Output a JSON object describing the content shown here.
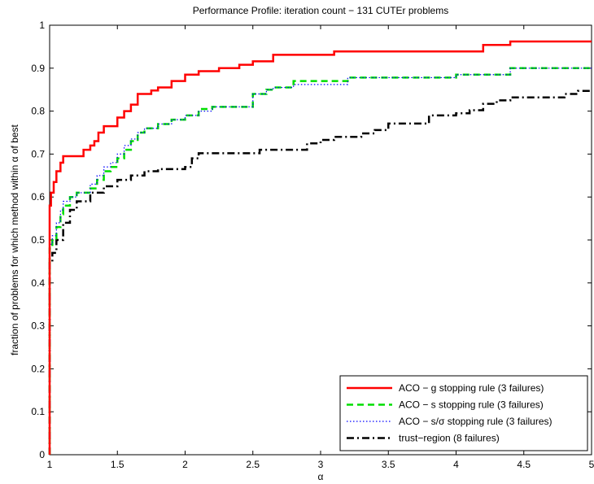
{
  "chart_data": {
    "type": "line",
    "title": "Performance Profile: iteration count − 131 CUTEr problems",
    "xlabel": "α",
    "ylabel": "fraction of problems for which method within α of best",
    "xlim": [
      1,
      5
    ],
    "ylim": [
      0,
      1
    ],
    "x_ticks": [
      1,
      1.5,
      2,
      2.5,
      3,
      3.5,
      4,
      4.5,
      5
    ],
    "x_tick_labels": [
      "1",
      "1.5",
      "2",
      "2.5",
      "3",
      "3.5",
      "4",
      "4.5",
      "5"
    ],
    "y_ticks": [
      0,
      0.1,
      0.2,
      0.3,
      0.4,
      0.5,
      0.6,
      0.7,
      0.8,
      0.9,
      1
    ],
    "y_tick_labels": [
      "0",
      "0.1",
      "0.2",
      "0.3",
      "0.4",
      "0.5",
      "0.6",
      "0.7",
      "0.8",
      "0.9",
      "1"
    ],
    "grid": false,
    "legend_position": "bottom-right",
    "series": [
      {
        "name": "ACO − g stopping rule (3 failures)",
        "color": "#ff0000",
        "style": "solid",
        "x": [
          1,
          1,
          1.01,
          1.03,
          1.05,
          1.08,
          1.1,
          1.15,
          1.2,
          1.25,
          1.3,
          1.33,
          1.36,
          1.4,
          1.45,
          1.5,
          1.55,
          1.6,
          1.65,
          1.7,
          1.75,
          1.8,
          1.9,
          2.0,
          2.1,
          2.25,
          2.4,
          2.5,
          2.65,
          2.75,
          3.0,
          3.1,
          3.5,
          4.0,
          4.2,
          4.4,
          4.5,
          5.0
        ],
        "y": [
          0,
          0.58,
          0.61,
          0.635,
          0.66,
          0.68,
          0.695,
          0.695,
          0.695,
          0.71,
          0.72,
          0.73,
          0.75,
          0.765,
          0.765,
          0.785,
          0.8,
          0.815,
          0.84,
          0.84,
          0.848,
          0.855,
          0.87,
          0.885,
          0.893,
          0.9,
          0.908,
          0.916,
          0.931,
          0.931,
          0.931,
          0.939,
          0.939,
          0.939,
          0.954,
          0.962,
          0.962,
          0.962
        ]
      },
      {
        "name": "ACO − s stopping rule (3 failures)",
        "color": "#00dd00",
        "style": "dashed",
        "x": [
          1,
          1,
          1.02,
          1.05,
          1.08,
          1.1,
          1.15,
          1.2,
          1.3,
          1.35,
          1.4,
          1.45,
          1.5,
          1.55,
          1.6,
          1.65,
          1.7,
          1.8,
          1.9,
          2.0,
          2.1,
          2.2,
          2.5,
          2.6,
          2.65,
          2.8,
          3.0,
          3.2,
          3.5,
          3.8,
          4.0,
          4.4,
          4.5,
          5.0
        ],
        "y": [
          0,
          0.48,
          0.5,
          0.53,
          0.56,
          0.58,
          0.6,
          0.61,
          0.62,
          0.64,
          0.66,
          0.67,
          0.69,
          0.71,
          0.73,
          0.75,
          0.76,
          0.77,
          0.78,
          0.79,
          0.805,
          0.81,
          0.84,
          0.85,
          0.855,
          0.87,
          0.87,
          0.878,
          0.878,
          0.878,
          0.885,
          0.9,
          0.9,
          0.9
        ]
      },
      {
        "name": "ACO − s/σ stopping rule (3 failures)",
        "color": "#0000ff",
        "style": "dotted",
        "x": [
          1,
          1,
          1.02,
          1.05,
          1.08,
          1.1,
          1.15,
          1.2,
          1.3,
          1.35,
          1.4,
          1.45,
          1.5,
          1.55,
          1.6,
          1.65,
          1.7,
          1.8,
          1.9,
          2.0,
          2.1,
          2.2,
          2.5,
          2.6,
          2.65,
          2.8,
          3.0,
          3.2,
          3.5,
          3.8,
          4.0,
          4.4,
          4.5,
          5.0
        ],
        "y": [
          0,
          0.49,
          0.51,
          0.54,
          0.57,
          0.59,
          0.6,
          0.61,
          0.63,
          0.65,
          0.67,
          0.68,
          0.7,
          0.72,
          0.735,
          0.75,
          0.76,
          0.77,
          0.78,
          0.79,
          0.8,
          0.81,
          0.84,
          0.85,
          0.855,
          0.862,
          0.862,
          0.878,
          0.878,
          0.878,
          0.885,
          0.9,
          0.9,
          0.9
        ]
      },
      {
        "name": "trust−region (8 failures)",
        "color": "#000000",
        "style": "dashdot",
        "x": [
          1,
          1,
          1.02,
          1.05,
          1.1,
          1.15,
          1.2,
          1.3,
          1.4,
          1.5,
          1.6,
          1.7,
          1.8,
          2.0,
          2.05,
          2.1,
          2.5,
          2.55,
          2.7,
          2.9,
          3.0,
          3.1,
          3.3,
          3.4,
          3.5,
          3.6,
          3.8,
          4.0,
          4.1,
          4.2,
          4.3,
          4.4,
          4.5,
          4.8,
          4.9,
          5.0
        ],
        "y": [
          0,
          0.45,
          0.47,
          0.5,
          0.54,
          0.57,
          0.59,
          0.61,
          0.625,
          0.64,
          0.65,
          0.66,
          0.665,
          0.67,
          0.69,
          0.702,
          0.702,
          0.71,
          0.71,
          0.725,
          0.733,
          0.74,
          0.748,
          0.756,
          0.771,
          0.771,
          0.79,
          0.795,
          0.802,
          0.817,
          0.825,
          0.832,
          0.832,
          0.84,
          0.847,
          0.85
        ]
      }
    ]
  }
}
